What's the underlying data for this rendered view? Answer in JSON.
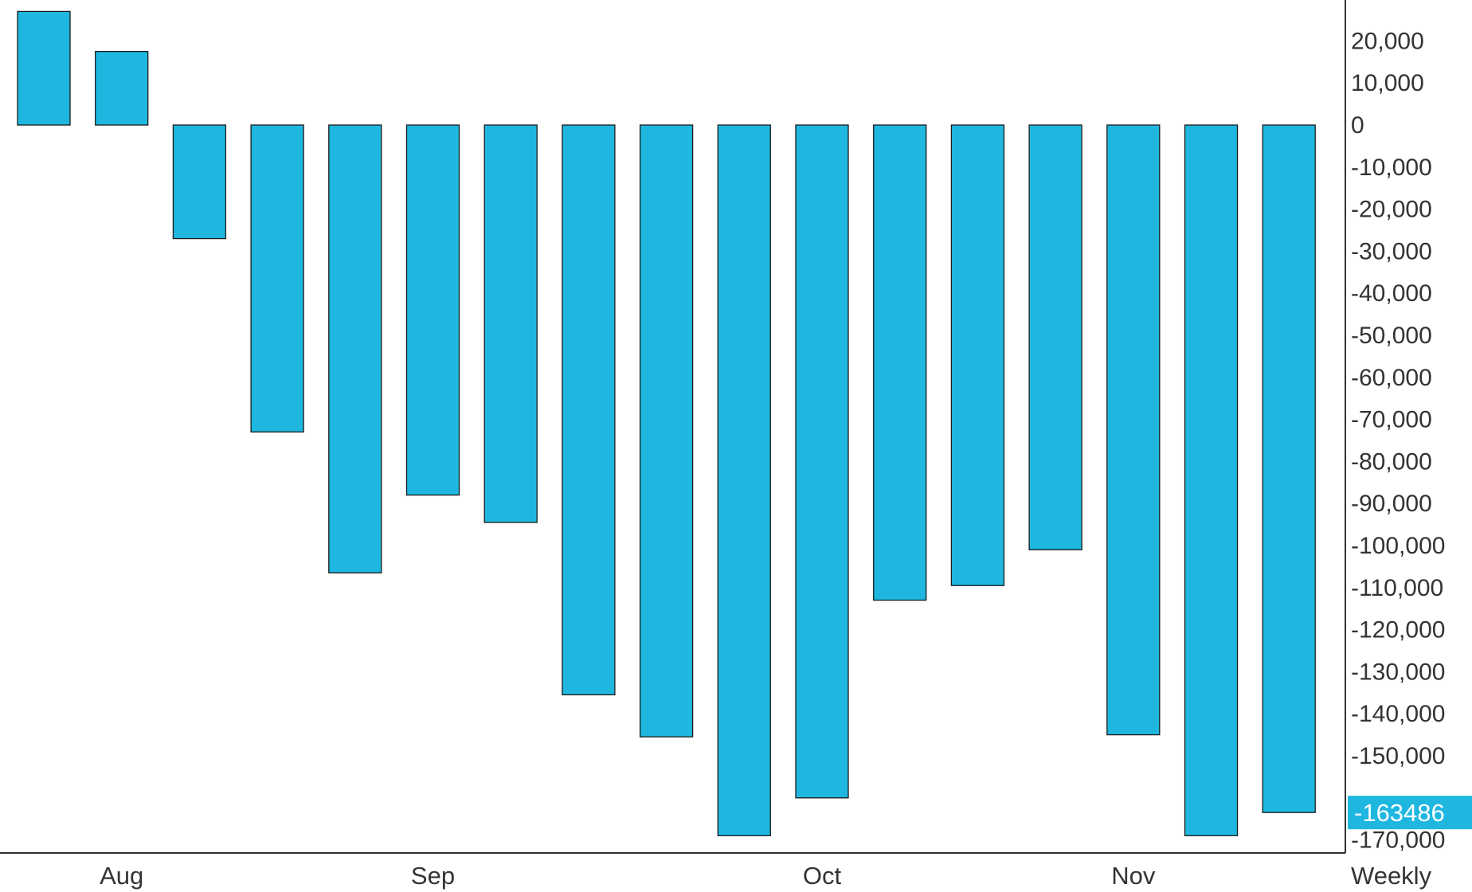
{
  "chart_data": {
    "type": "bar",
    "title": "",
    "xlabel": "",
    "ylabel": "",
    "period_label": "Weekly",
    "last_value_label": "-163486",
    "last_value": -163486,
    "ylim": [
      -172000,
      30000
    ],
    "y_ticks": [
      20000,
      10000,
      0,
      -10000,
      -20000,
      -30000,
      -40000,
      -50000,
      -60000,
      -70000,
      -80000,
      -90000,
      -100000,
      -110000,
      -120000,
      -130000,
      -140000,
      -150000,
      -170000
    ],
    "y_tick_labels": [
      "20,000",
      "10,000",
      "0",
      "-10,000",
      "-20,000",
      "-30,000",
      "-40,000",
      "-50,000",
      "-60,000",
      "-70,000",
      "-80,000",
      "-90,000",
      "-100,000",
      "-110,000",
      "-120,000",
      "-130,000",
      "-140,000",
      "-150,000",
      "-170,000"
    ],
    "x_labels": [
      {
        "label": "Aug",
        "bar_index": 1
      },
      {
        "label": "Sep",
        "bar_index": 5
      },
      {
        "label": "Oct",
        "bar_index": 10
      },
      {
        "label": "Nov",
        "bar_index": 14
      }
    ],
    "values": [
      27000,
      17500,
      -27000,
      -73000,
      -106500,
      -88000,
      -94500,
      -135500,
      -145500,
      -169000,
      -160000,
      -113000,
      -109500,
      -101000,
      -145000,
      -169000,
      -163486
    ],
    "colors": {
      "bar": "#1fb7e0",
      "bar_border": "#1a1a1a",
      "axis": "#333333",
      "last_value_bg": "#1fb7e0"
    }
  }
}
